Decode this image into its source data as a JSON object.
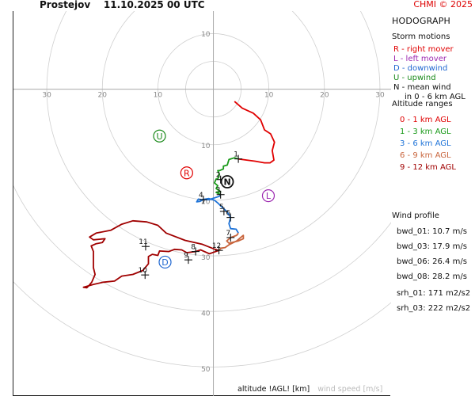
{
  "header": {
    "title": "Prostejov    11.10.2025 00 UTC",
    "copyright": "CHMI © 2025"
  },
  "sidebar": {
    "title": "HODOGRAPH",
    "storm_heading": "Storm motions",
    "storm_items": [
      {
        "text": "R - right mover",
        "color": "#e00000"
      },
      {
        "text": "L - left mover",
        "color": "#9c27b0"
      },
      {
        "text": "D - downwind",
        "color": "#1e66d0"
      },
      {
        "text": "U - upwind",
        "color": "#1a8a1a"
      },
      {
        "text": "N - mean wind",
        "color": "#111111"
      },
      {
        "text": "in 0 - 6 km AGL",
        "color": "#111111"
      }
    ],
    "altitude_heading": "Altitude ranges",
    "altitude_items": [
      {
        "text": "0 - 1 km AGL",
        "color": "#e00000"
      },
      {
        "text": "1 - 3 km AGL",
        "color": "#1a9a1a"
      },
      {
        "text": "3 - 6 km AGL",
        "color": "#1e73d8"
      },
      {
        "text": "6 - 9 km AGL",
        "color": "#c8643c"
      },
      {
        "text": "9 - 12 km AGL",
        "color": "#a00000"
      }
    ],
    "profile_heading": "Wind profile",
    "profile_items": [
      "bwd_01: 10.7 m/s",
      "bwd_03: 17.9 m/s",
      "bwd_06: 26.4 m/s",
      "bwd_08: 28.2 m/s",
      "srh_01: 171 m2/s2",
      "srh_03: 222 m2/s2"
    ]
  },
  "footer": {
    "altitude_label": "altitude !AGL! [km]",
    "speed_label": "wind speed [m/s]"
  },
  "chart_data": {
    "type": "line",
    "xlim": [
      -36,
      32
    ],
    "ylim": [
      -55,
      14
    ],
    "ring_labels": [
      "10",
      "20",
      "30",
      "40",
      "50"
    ],
    "x_tick_labels": [
      {
        "value": -30,
        "text": "30"
      },
      {
        "value": -20,
        "text": "20"
      },
      {
        "value": -10,
        "text": "10"
      },
      {
        "value": 10,
        "text": "10"
      },
      {
        "value": 20,
        "text": "20"
      },
      {
        "value": 30,
        "text": "30"
      }
    ],
    "series": [
      {
        "color": "#e00000",
        "points": [
          [
            3.8,
            -2.2
          ],
          [
            5.2,
            -3.4
          ],
          [
            7.2,
            -4.3
          ],
          [
            8.5,
            -5.5
          ],
          [
            9.2,
            -7.3
          ],
          [
            10.3,
            -8.0
          ],
          [
            11.0,
            -9.5
          ],
          [
            10.6,
            -11.0
          ],
          [
            10.9,
            -12.7
          ],
          [
            10.2,
            -13.2
          ],
          [
            9.2,
            -13.2
          ],
          [
            7.5,
            -12.9
          ],
          [
            6.0,
            -12.7
          ],
          [
            4.5,
            -12.5
          ]
        ]
      },
      {
        "color": "#1a9a1a",
        "points": [
          [
            4.5,
            -12.5
          ],
          [
            3.8,
            -12.3
          ],
          [
            2.8,
            -12.6
          ],
          [
            2.5,
            -13.6
          ],
          [
            1.8,
            -13.8
          ],
          [
            1.8,
            -14.3
          ],
          [
            1.1,
            -14.6
          ],
          [
            0.8,
            -14.6
          ],
          [
            1.1,
            -15.3
          ],
          [
            0.8,
            -16.1
          ],
          [
            0.5,
            -16.1
          ],
          [
            0.2,
            -16.8
          ],
          [
            0.8,
            -17.3
          ],
          [
            0.5,
            -17.8
          ],
          [
            1.3,
            -18.4
          ],
          [
            0.5,
            -18.5
          ],
          [
            1.3,
            -18.9
          ]
        ]
      },
      {
        "color": "#1e73d8",
        "points": [
          [
            1.3,
            -18.9
          ],
          [
            1.1,
            -19.2
          ],
          [
            -0.8,
            -19.8
          ],
          [
            -1.8,
            -19.8
          ],
          [
            -2.4,
            -20.1
          ],
          [
            -3.0,
            -20.2
          ],
          [
            -2.7,
            -19.7
          ],
          [
            -2.1,
            -19.8
          ],
          [
            -0.8,
            -19.6
          ],
          [
            0.2,
            -19.9
          ],
          [
            0.8,
            -20.4
          ],
          [
            1.4,
            -21.0
          ],
          [
            2.4,
            -21.9
          ],
          [
            3.1,
            -23.0
          ],
          [
            2.8,
            -24.1
          ],
          [
            3.1,
            -25.0
          ],
          [
            4.1,
            -25.1
          ],
          [
            4.5,
            -25.8
          ]
        ]
      },
      {
        "color": "#c8643c",
        "points": [
          [
            4.5,
            -25.8
          ],
          [
            4.2,
            -26.2
          ],
          [
            3.1,
            -26.6
          ],
          [
            2.4,
            -27.2
          ],
          [
            2.8,
            -27.6
          ],
          [
            4.5,
            -27.2
          ],
          [
            5.4,
            -26.8
          ],
          [
            5.4,
            -26.2
          ],
          [
            4.9,
            -26.6
          ],
          [
            4.2,
            -27.2
          ],
          [
            2.8,
            -27.9
          ],
          [
            2.1,
            -28.4
          ],
          [
            1.4,
            -28.5
          ],
          [
            1.0,
            -28.9
          ]
        ]
      },
      {
        "color": "#a00000",
        "points": [
          [
            1.0,
            -28.9
          ],
          [
            0.3,
            -28.7
          ],
          [
            -2.0,
            -27.8
          ],
          [
            -5.1,
            -27.1
          ],
          [
            -8.5,
            -25.8
          ],
          [
            -10.0,
            -24.4
          ],
          [
            -12.0,
            -23.8
          ],
          [
            -14.5,
            -23.6
          ],
          [
            -16.5,
            -24.2
          ],
          [
            -18.5,
            -25.3
          ],
          [
            -21.1,
            -25.8
          ],
          [
            -22.3,
            -26.5
          ],
          [
            -21.6,
            -27.0
          ],
          [
            -19.5,
            -26.8
          ],
          [
            -20.0,
            -27.5
          ],
          [
            -21.1,
            -27.7
          ],
          [
            -22.0,
            -28.1
          ],
          [
            -21.6,
            -29.1
          ],
          [
            -21.6,
            -30.5
          ],
          [
            -21.6,
            -32.0
          ],
          [
            -21.3,
            -33.2
          ],
          [
            -21.9,
            -34.6
          ],
          [
            -22.4,
            -35.2
          ],
          [
            -22.8,
            -35.6
          ],
          [
            -23.4,
            -35.5
          ],
          [
            -21.6,
            -35.0
          ],
          [
            -19.8,
            -34.6
          ],
          [
            -17.8,
            -34.4
          ],
          [
            -16.5,
            -33.5
          ],
          [
            -14.5,
            -33.2
          ],
          [
            -12.7,
            -32.5
          ],
          [
            -11.7,
            -31.3
          ],
          [
            -11.7,
            -30.0
          ],
          [
            -11.0,
            -29.6
          ],
          [
            -10.0,
            -29.8
          ],
          [
            -9.7,
            -29.0
          ],
          [
            -8.0,
            -29.1
          ],
          [
            -7.0,
            -28.7
          ],
          [
            -5.7,
            -28.8
          ],
          [
            -4.8,
            -29.3
          ],
          [
            -3.2,
            -29.1
          ],
          [
            -2.3,
            -28.8
          ],
          [
            -0.7,
            -29.5
          ],
          [
            1.0,
            -28.9
          ]
        ]
      }
    ],
    "altitude_marks": [
      {
        "label": "1",
        "x": 4.5,
        "y": -12.5
      },
      {
        "label": "2",
        "x": 1.3,
        "y": -16.2
      },
      {
        "label": "3",
        "x": 1.3,
        "y": -18.9
      },
      {
        "label": "4",
        "x": -1.8,
        "y": -19.8
      },
      {
        "label": "5",
        "x": 1.9,
        "y": -21.9
      },
      {
        "label": "6",
        "x": 3.1,
        "y": -23.0
      },
      {
        "label": "7",
        "x": 3.1,
        "y": -26.6
      },
      {
        "label": "8",
        "x": -3.2,
        "y": -29.1
      },
      {
        "label": "9",
        "x": -4.5,
        "y": -30.6
      },
      {
        "label": "10",
        "x": -12.3,
        "y": -33.3
      },
      {
        "label": "11",
        "x": -12.2,
        "y": -28.2
      },
      {
        "label": "12",
        "x": 1.0,
        "y": -28.9
      }
    ],
    "storm_motions": [
      {
        "label": "R",
        "x": -4.8,
        "y": -15.0,
        "color": "#e00000"
      },
      {
        "label": "L",
        "x": 9.9,
        "y": -19.1,
        "color": "#9c27b0"
      },
      {
        "label": "D",
        "x": -8.7,
        "y": -31.0,
        "color": "#1e66d0"
      },
      {
        "label": "U",
        "x": -9.7,
        "y": -8.4,
        "color": "#1a8a1a"
      },
      {
        "label": "N",
        "x": 2.5,
        "y": -16.6,
        "color": "#111111"
      }
    ]
  }
}
